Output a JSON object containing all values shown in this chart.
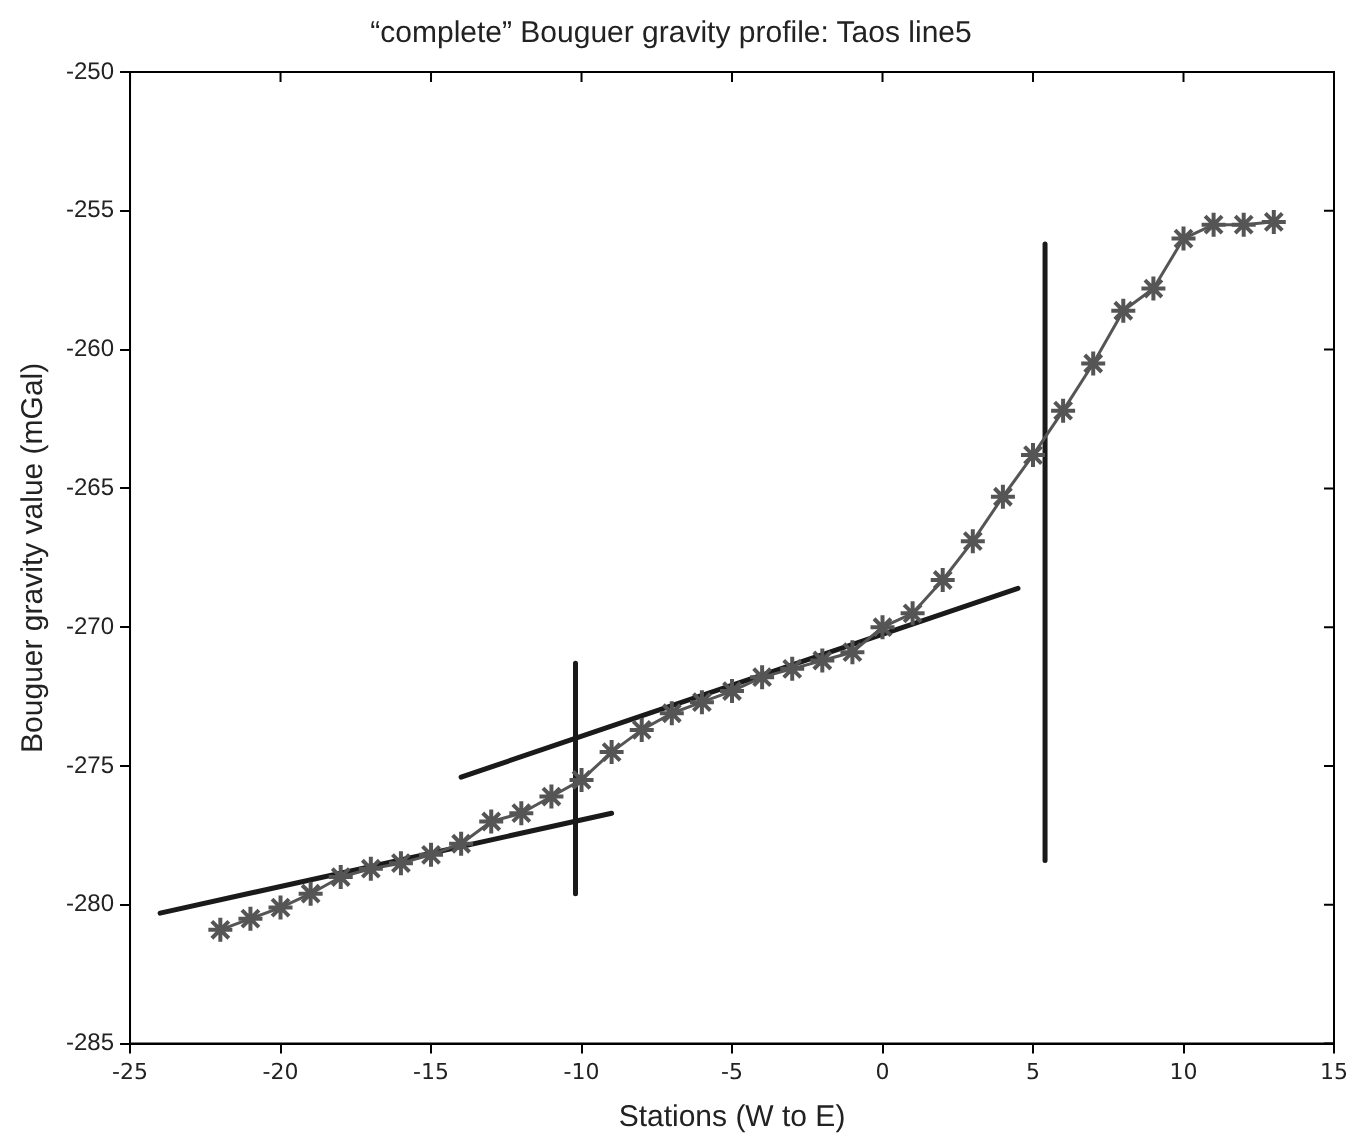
{
  "chart_data": {
    "type": "line",
    "title": "“complete” Bouguer gravity profile: Taos line5",
    "xlabel": "Stations (W to E)",
    "ylabel": "Bouguer gravity value (mGal)",
    "xlim": [
      -25,
      15
    ],
    "xticks": [
      -25,
      -20,
      -15,
      -10,
      -5,
      0,
      5,
      10,
      15
    ],
    "ylim": [
      -285,
      -250
    ],
    "yticks": [
      -285,
      -280,
      -275,
      -270,
      -265,
      -260,
      -255,
      -250
    ],
    "grid": false,
    "legend": false,
    "series": [
      {
        "color": "#555555",
        "marker": "cross",
        "x": [
          -22,
          -21,
          -20,
          -19,
          -18,
          -17,
          -16,
          -15,
          -14,
          -13,
          -12,
          -11,
          -10,
          -9,
          -8,
          -7,
          -6,
          -5,
          -4,
          -3,
          -2,
          -1,
          0,
          1,
          2,
          3,
          4,
          5,
          6,
          7,
          8,
          9,
          10,
          11,
          12,
          13
        ],
        "values": [
          -280.9,
          -280.5,
          -280.1,
          -279.6,
          -279.0,
          -278.7,
          -278.5,
          -278.2,
          -277.8,
          -277.0,
          -276.7,
          -276.1,
          -275.5,
          -274.5,
          -273.7,
          -273.1,
          -272.7,
          -272.3,
          -271.8,
          -271.5,
          -271.2,
          -270.9,
          -270.0,
          -269.5,
          -268.3,
          -266.9,
          -265.3,
          -263.8,
          -262.2,
          -260.5,
          -258.6,
          -257.8,
          -256.0,
          -255.5,
          -255.5,
          -255.4
        ]
      },
      {
        "color": "#1a1a1a",
        "marker": "none",
        "x": [
          -24,
          -9
        ],
        "values": [
          -280.3,
          -276.7
        ]
      },
      {
        "color": "#1a1a1a",
        "marker": "none",
        "x": [
          -14,
          4.5
        ],
        "values": [
          -275.4,
          -268.6
        ]
      },
      {
        "color": "#1a1a1a",
        "marker": "none",
        "x": [
          -10.2,
          -10.2
        ],
        "values": [
          -271.3,
          -279.6
        ]
      },
      {
        "color": "#1a1a1a",
        "marker": "none",
        "x": [
          5.4,
          5.4
        ],
        "values": [
          -256.2,
          -278.4
        ]
      }
    ]
  }
}
